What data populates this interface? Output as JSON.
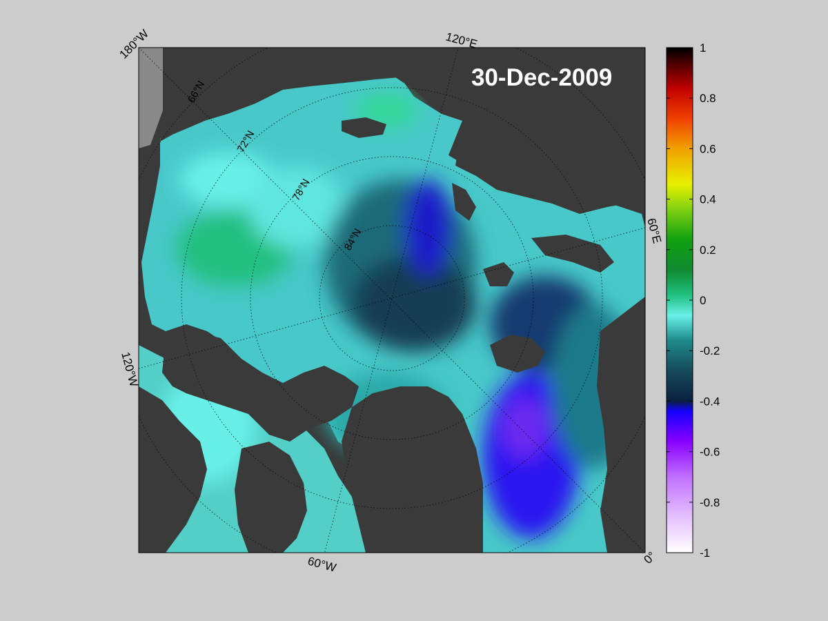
{
  "date_label": "30-Dec-2009",
  "longitude_labels": {
    "lon_180w": "180°W",
    "lon_120e": "120°E",
    "lon_60e": "60°E",
    "lon_120w": "120°W",
    "lon_60w": "60°W",
    "lon_0": "0°"
  },
  "latitude_labels": [
    "66°N",
    "72°N",
    "78°N",
    "84°N"
  ],
  "colorbar": {
    "min": -1,
    "max": 1,
    "ticks": [
      "1",
      "0.8",
      "0.6",
      "0.4",
      "0.2",
      "0",
      "-0.2",
      "-0.4",
      "-0.6",
      "-0.8",
      "-1"
    ],
    "colormap": [
      "#ffffff",
      "#c070ff",
      "#8800ff",
      "#1400ff",
      "#0a2040",
      "#1e7a7a",
      "#6af0e8",
      "#20c080",
      "#108a10",
      "#80d010",
      "#e8f000",
      "#f09000",
      "#f02000",
      "#900000",
      "#000000"
    ]
  },
  "colors": {
    "figure_background": "#cccccc",
    "land": "#3a3a3a",
    "ice_shelf": "#8a8a8a",
    "text": "#000000",
    "date_text": "#ffffff"
  }
}
